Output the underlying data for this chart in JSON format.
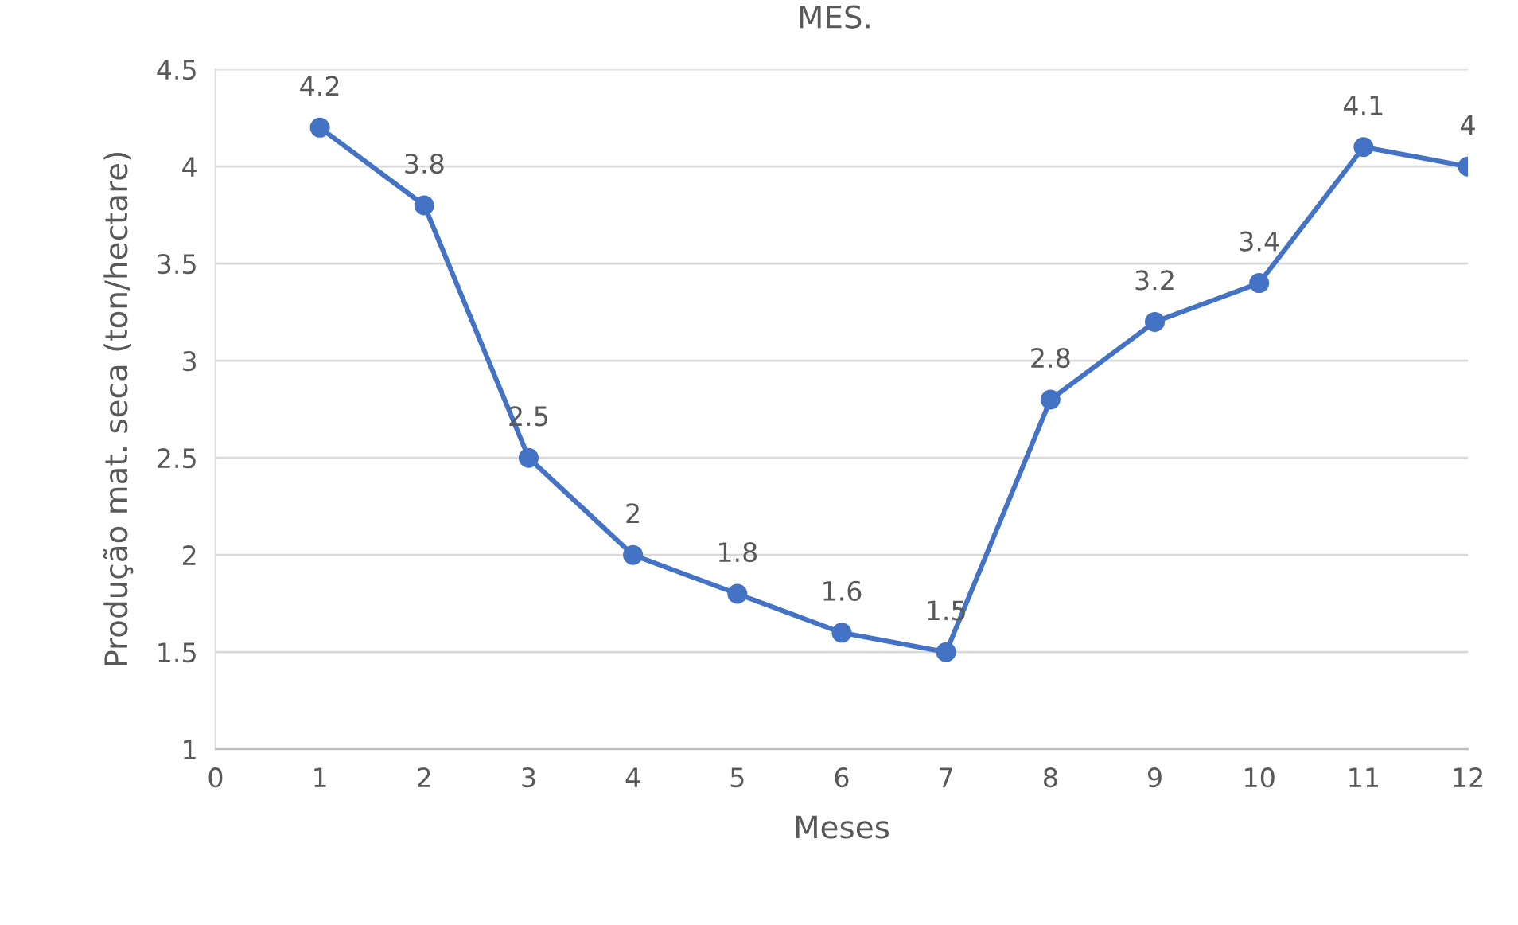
{
  "chart_data": {
    "type": "line",
    "title": "MES.",
    "xlabel": "Meses",
    "ylabel": "Produção mat. seca (ton/hectare)",
    "x": [
      1,
      2,
      3,
      4,
      5,
      6,
      7,
      8,
      9,
      10,
      11,
      12
    ],
    "series": [
      {
        "color": "#4472c4",
        "values": [
          4.2,
          3.8,
          2.5,
          2,
          1.8,
          1.6,
          1.5,
          2.8,
          3.2,
          3.4,
          4.1,
          4
        ]
      }
    ],
    "xlim": [
      0,
      12
    ],
    "xticks": [
      0,
      1,
      2,
      3,
      4,
      5,
      6,
      7,
      8,
      9,
      10,
      11,
      12
    ],
    "ylim": [
      1,
      4.5
    ],
    "yticks": [
      1,
      1.5,
      2,
      2.5,
      3,
      3.5,
      4,
      4.5
    ],
    "grid": "y",
    "marker": "circle",
    "line_style": "solid",
    "data_labels": true,
    "legend": false
  }
}
